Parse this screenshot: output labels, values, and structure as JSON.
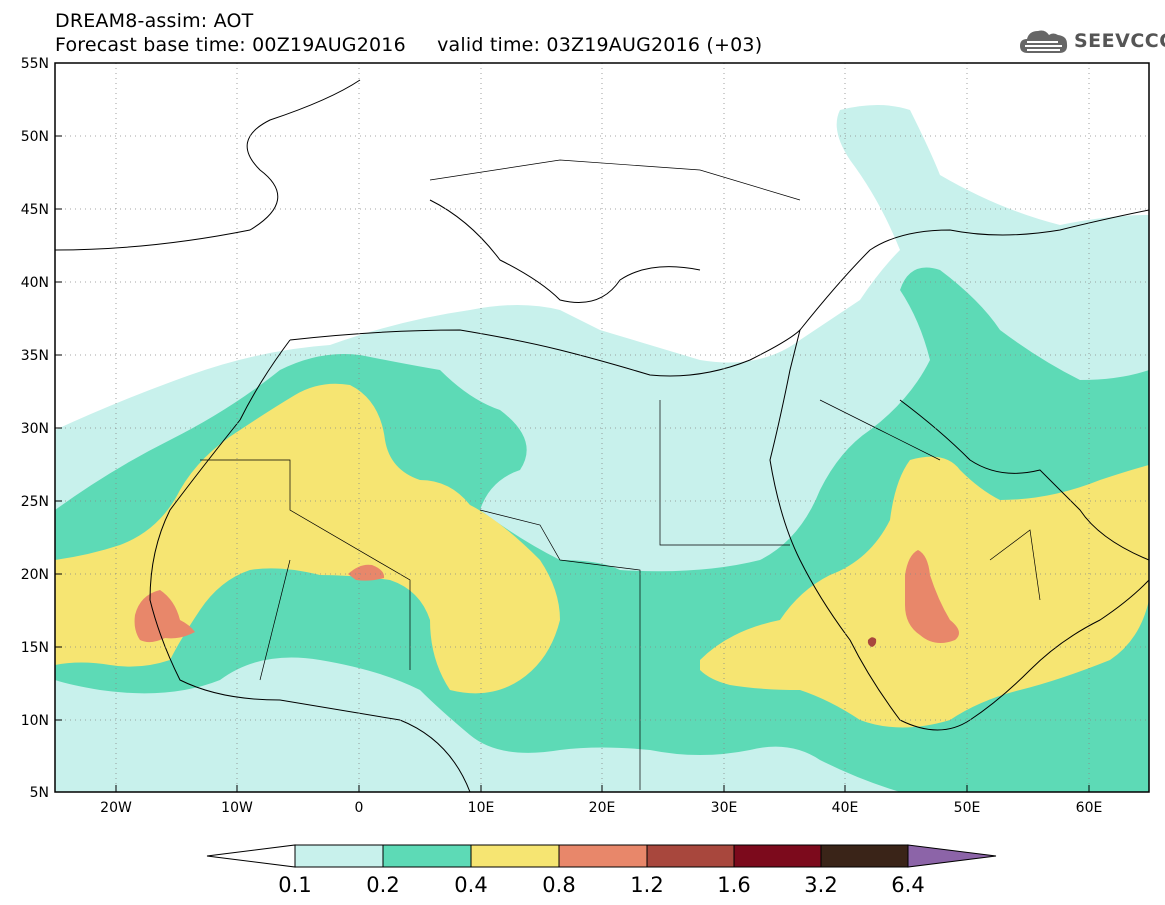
{
  "header": {
    "title": "DREAM8-assim: AOT",
    "base_label": "Forecast base time: 00Z19AUG2016",
    "valid_label": "valid time: 03Z19AUG2016 (+03)"
  },
  "logo": {
    "text": "SEEVCCC",
    "icon": "cloud-icon"
  },
  "map": {
    "lat_labels": [
      "55N",
      "50N",
      "45N",
      "40N",
      "35N",
      "30N",
      "25N",
      "20N",
      "15N",
      "10N",
      "5N"
    ],
    "lon_labels": [
      "20W",
      "10W",
      "0",
      "10E",
      "20E",
      "30E",
      "40E",
      "50E",
      "60E"
    ],
    "palette": {
      "white": "#ffffff",
      "c01": "#c8f1ec",
      "c02": "#5ddab6",
      "c04": "#f6e572",
      "c08": "#e8876a",
      "c12": "#a8473d",
      "c16": "#7c0a1c",
      "c32": "#3a2418",
      "c64": "#8c64a8"
    }
  },
  "colorbar": {
    "labels": [
      "0.1",
      "0.2",
      "0.4",
      "0.8",
      "1.2",
      "1.6",
      "3.2",
      "6.4"
    ]
  }
}
